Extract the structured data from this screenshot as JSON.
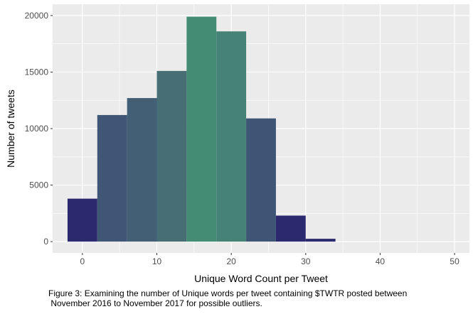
{
  "chart_data": {
    "type": "bar",
    "subtype": "histogram",
    "bins": [
      {
        "x": 0,
        "count": 3800,
        "color": "#2C2A6E"
      },
      {
        "x": 4,
        "count": 11200,
        "color": "#3F5676"
      },
      {
        "x": 8,
        "count": 12700,
        "color": "#425F76"
      },
      {
        "x": 12,
        "count": 15100,
        "color": "#466E74"
      },
      {
        "x": 16,
        "count": 19900,
        "color": "#448C74"
      },
      {
        "x": 20,
        "count": 18600,
        "color": "#468276"
      },
      {
        "x": 24,
        "count": 10900,
        "color": "#3F5575"
      },
      {
        "x": 28,
        "count": 2300,
        "color": "#2C2A6E"
      },
      {
        "x": 32,
        "count": 250,
        "color": "#2C2A6E"
      }
    ],
    "binwidth": 4,
    "xlabel": "Unique Word Count per Tweet",
    "ylabel": "Number of tweets",
    "xlim": [
      -4,
      52
    ],
    "ylim": [
      -1000,
      21000
    ],
    "xticks": [
      0,
      10,
      20,
      30,
      40,
      50
    ],
    "yticks": [
      0,
      5000,
      10000,
      15000,
      20000
    ],
    "grid": true,
    "panel_background": "#EBEBEB",
    "grid_color": "#FFFFFF"
  },
  "caption": {
    "line1": "Figure 3: Examining the number of Unique words per tweet containing $TWTR posted between",
    "line2": " November 2016 to November 2017 for possible outliers."
  }
}
